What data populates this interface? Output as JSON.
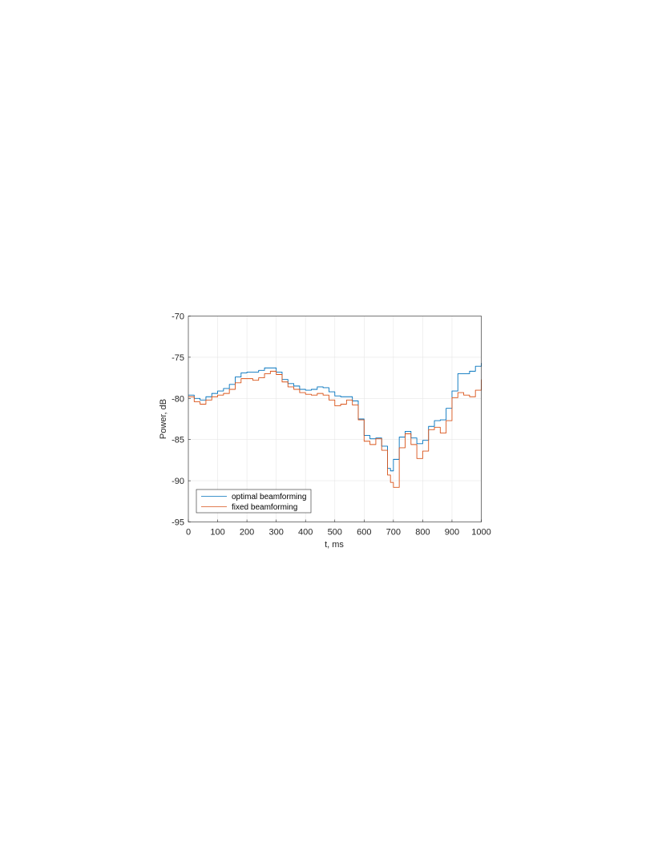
{
  "chart_data": {
    "type": "line",
    "xlabel": "t, ms",
    "ylabel": "Power, dB",
    "xlim": [
      0,
      1000
    ],
    "ylim": [
      -95,
      -70
    ],
    "xticks": [
      0,
      100,
      200,
      300,
      400,
      500,
      600,
      700,
      800,
      900,
      1000
    ],
    "yticks": [
      -70,
      -75,
      -80,
      -85,
      -90,
      -95
    ],
    "grid": true,
    "step": true,
    "legend_position": "bottom-left",
    "series": [
      {
        "name": "optimal beamforming",
        "color": "#0072BD",
        "x": [
          0,
          20,
          40,
          60,
          80,
          100,
          120,
          140,
          160,
          180,
          200,
          220,
          240,
          260,
          280,
          300,
          320,
          340,
          360,
          380,
          400,
          420,
          440,
          460,
          480,
          500,
          520,
          540,
          560,
          580,
          600,
          620,
          640,
          660,
          680,
          690,
          700,
          720,
          740,
          760,
          780,
          800,
          820,
          840,
          860,
          880,
          900,
          920,
          940,
          960,
          980,
          1000
        ],
        "y": [
          -79.6,
          -80.0,
          -80.2,
          -79.8,
          -79.4,
          -79.1,
          -78.8,
          -78.3,
          -77.4,
          -76.9,
          -76.8,
          -76.8,
          -76.6,
          -76.3,
          -76.3,
          -76.8,
          -77.7,
          -78.2,
          -78.5,
          -78.9,
          -79.0,
          -78.9,
          -78.6,
          -78.7,
          -79.2,
          -79.7,
          -79.8,
          -79.8,
          -80.3,
          -82.5,
          -84.5,
          -84.9,
          -84.8,
          -85.8,
          -88.5,
          -88.8,
          -87.4,
          -84.7,
          -84.0,
          -84.8,
          -85.5,
          -85.1,
          -83.4,
          -82.7,
          -82.6,
          -81.2,
          -79.1,
          -77.0,
          -77.0,
          -76.7,
          -76.1,
          -75.7
        ]
      },
      {
        "name": "fixed beamforming",
        "color": "#D95319",
        "x": [
          0,
          20,
          40,
          60,
          80,
          100,
          120,
          140,
          160,
          180,
          200,
          220,
          240,
          260,
          280,
          300,
          320,
          340,
          360,
          380,
          400,
          420,
          440,
          460,
          480,
          500,
          520,
          540,
          560,
          580,
          600,
          620,
          640,
          660,
          680,
          690,
          700,
          720,
          740,
          760,
          780,
          800,
          820,
          840,
          860,
          880,
          900,
          920,
          940,
          960,
          980,
          1000
        ],
        "y": [
          -79.8,
          -80.4,
          -80.7,
          -80.2,
          -79.8,
          -79.6,
          -79.4,
          -78.9,
          -78.1,
          -77.6,
          -77.6,
          -77.8,
          -77.5,
          -77.0,
          -76.7,
          -77.1,
          -78.0,
          -78.6,
          -78.9,
          -79.3,
          -79.5,
          -79.6,
          -79.4,
          -79.6,
          -80.2,
          -80.9,
          -80.7,
          -80.2,
          -80.8,
          -82.6,
          -85.2,
          -85.6,
          -84.9,
          -86.3,
          -89.3,
          -90.2,
          -90.8,
          -86.0,
          -84.3,
          -85.6,
          -87.3,
          -86.4,
          -83.8,
          -83.5,
          -84.2,
          -82.7,
          -79.9,
          -79.3,
          -79.6,
          -79.8,
          -79.0,
          -77.7
        ]
      }
    ]
  }
}
